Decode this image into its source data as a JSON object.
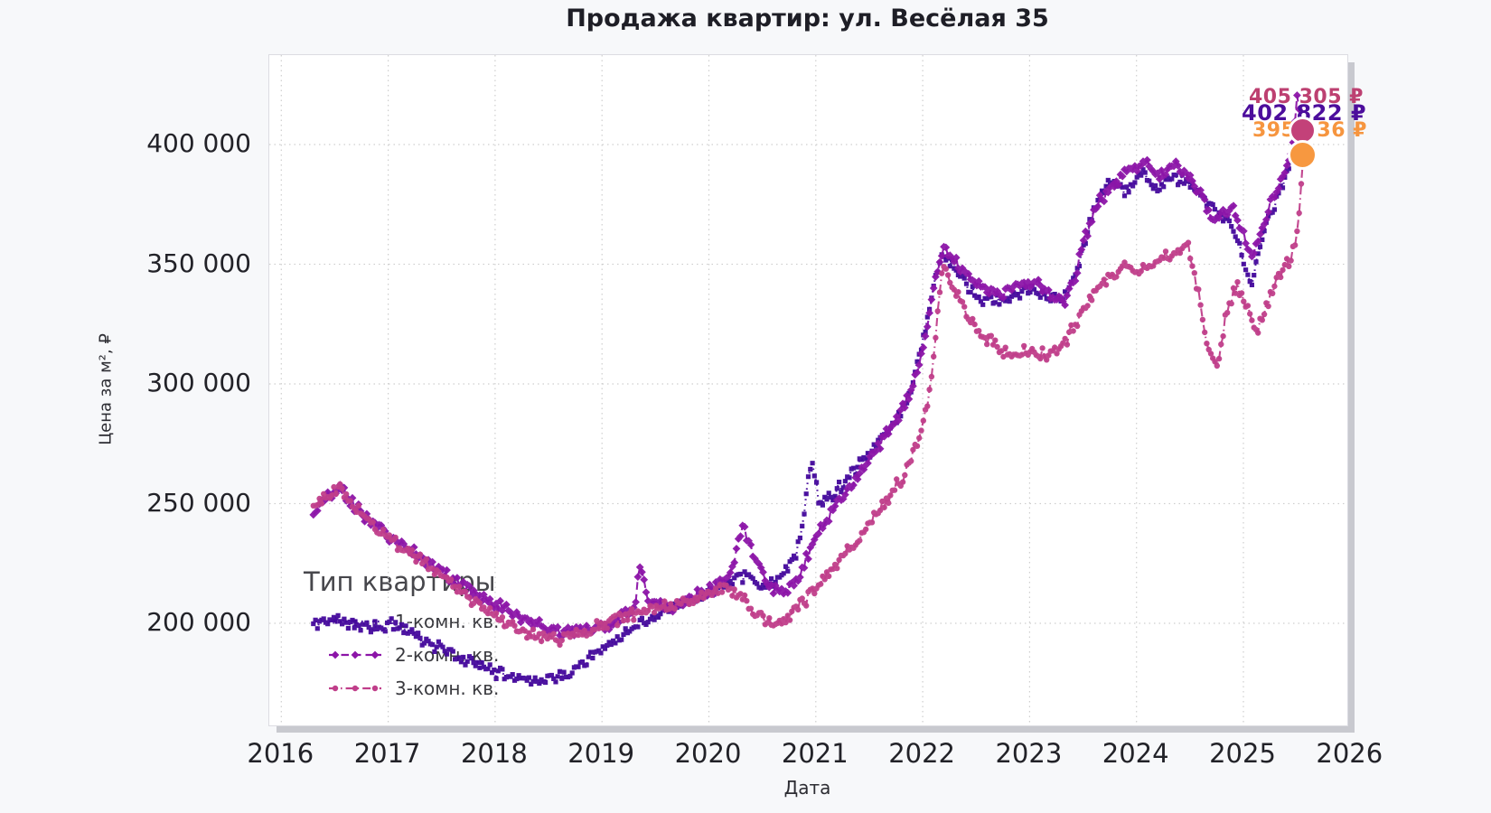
{
  "title": "Продажа квартир: ул. Весёлая 35",
  "x_axis": {
    "label": "Дата"
  },
  "y_axis": {
    "label": "Цена за м², ₽"
  },
  "legend": {
    "title": "Тип квартиры"
  },
  "colors": {
    "background": "#f7f8fa",
    "plot_background": "#ffffff",
    "grid": "#c9c9c9",
    "text": "#222228",
    "series_1room": "#45089c",
    "series_2room": "#8c15a8",
    "series_3room": "#c03e8a",
    "annotation_1room": "#4c0d9c",
    "annotation_2room": "#bd4071",
    "annotation_3room": "#f6953f"
  },
  "chart_data": {
    "type": "line",
    "title": "Продажа квартир: ул. Весёлая 35",
    "xlabel": "Дата",
    "ylabel": "Цена за м², ₽",
    "legend_title": "Тип квартиры",
    "grid": "dotted",
    "x_tick_labels": [
      "2016",
      "2017",
      "2018",
      "2019",
      "2020",
      "2021",
      "2022",
      "2023",
      "2024",
      "2025",
      "2026"
    ],
    "x_tick_years": [
      2016,
      2017,
      2018,
      2019,
      2020,
      2021,
      2022,
      2023,
      2024,
      2025,
      2026
    ],
    "y_ticks": [
      {
        "value": 200000,
        "label": "200 000"
      },
      {
        "value": 250000,
        "label": "250 000"
      },
      {
        "value": 300000,
        "label": "300 000"
      },
      {
        "value": 350000,
        "label": "350 000"
      },
      {
        "value": 400000,
        "label": "400 000"
      }
    ],
    "x_range_years": [
      2015.89,
      2025.97
    ],
    "y_range": [
      157400,
      437400
    ],
    "series": [
      {
        "name": "1-комн. кв.",
        "color": "#45089c",
        "linestyle": "dotted",
        "marker": "square",
        "final_value": 402822,
        "final_label": "402 822 ₽",
        "final_label_color": "#4c0d9c",
        "end_dot_color": null,
        "points_year_price": [
          [
            2016.3,
            199500
          ],
          [
            2016.5,
            202000
          ],
          [
            2016.7,
            199000
          ],
          [
            2016.9,
            196500
          ],
          [
            2017.05,
            199500
          ],
          [
            2017.25,
            194000
          ],
          [
            2017.45,
            190000
          ],
          [
            2017.65,
            186500
          ],
          [
            2017.85,
            182500
          ],
          [
            2018.05,
            179000
          ],
          [
            2018.25,
            176500
          ],
          [
            2018.45,
            175500
          ],
          [
            2018.65,
            178000
          ],
          [
            2018.85,
            184000
          ],
          [
            2019.05,
            191000
          ],
          [
            2019.25,
            197000
          ],
          [
            2019.45,
            202000
          ],
          [
            2019.6,
            206000
          ],
          [
            2019.75,
            209000
          ],
          [
            2019.9,
            211000
          ],
          [
            2020.05,
            213500
          ],
          [
            2020.2,
            217000
          ],
          [
            2020.35,
            221000
          ],
          [
            2020.5,
            215500
          ],
          [
            2020.65,
            219000
          ],
          [
            2020.8,
            227000
          ],
          [
            2020.88,
            242000
          ],
          [
            2020.96,
            270000
          ],
          [
            2021.04,
            249000
          ],
          [
            2021.25,
            258000
          ],
          [
            2021.45,
            268000
          ],
          [
            2021.65,
            279000
          ],
          [
            2021.85,
            292000
          ],
          [
            2022.0,
            318000
          ],
          [
            2022.1,
            340000
          ],
          [
            2022.18,
            356000
          ],
          [
            2022.3,
            349000
          ],
          [
            2022.45,
            339000
          ],
          [
            2022.6,
            334500
          ],
          [
            2022.8,
            335500
          ],
          [
            2023.0,
            340000
          ],
          [
            2023.15,
            337000
          ],
          [
            2023.3,
            334500
          ],
          [
            2023.45,
            349000
          ],
          [
            2023.6,
            373000
          ],
          [
            2023.75,
            385000
          ],
          [
            2023.9,
            380000
          ],
          [
            2024.05,
            388000
          ],
          [
            2024.2,
            382000
          ],
          [
            2024.35,
            387000
          ],
          [
            2024.5,
            383000
          ],
          [
            2024.62,
            377000
          ],
          [
            2024.75,
            372000
          ],
          [
            2024.88,
            369000
          ],
          [
            2025.0,
            352000
          ],
          [
            2025.07,
            341000
          ],
          [
            2025.17,
            362000
          ],
          [
            2025.28,
            373000
          ],
          [
            2025.38,
            386000
          ],
          [
            2025.48,
            395000
          ],
          [
            2025.53,
            399000
          ],
          [
            2025.56,
            402822
          ]
        ]
      },
      {
        "name": "2-комн. кв.",
        "color": "#8c15a8",
        "linestyle": "dashed",
        "marker": "diamond",
        "final_value": 405305,
        "final_label": "405 305 ₽",
        "final_label_color": "#bd4071",
        "end_dot_color": "#c34179",
        "end_dot_radius": 12.5,
        "points_year_price": [
          [
            2016.3,
            246000
          ],
          [
            2016.42,
            251000
          ],
          [
            2016.55,
            257500
          ],
          [
            2016.65,
            251000
          ],
          [
            2016.8,
            244000
          ],
          [
            2016.95,
            238500
          ],
          [
            2017.1,
            233500
          ],
          [
            2017.3,
            227500
          ],
          [
            2017.5,
            221500
          ],
          [
            2017.7,
            216000
          ],
          [
            2017.9,
            210500
          ],
          [
            2018.1,
            205500
          ],
          [
            2018.3,
            200500
          ],
          [
            2018.5,
            197500
          ],
          [
            2018.7,
            196000
          ],
          [
            2018.9,
            197500
          ],
          [
            2019.1,
            200500
          ],
          [
            2019.3,
            206000
          ],
          [
            2019.36,
            226000
          ],
          [
            2019.44,
            208000
          ],
          [
            2019.6,
            207000
          ],
          [
            2019.75,
            208000
          ],
          [
            2019.9,
            212000
          ],
          [
            2020.05,
            214000
          ],
          [
            2020.2,
            220000
          ],
          [
            2020.32,
            241000
          ],
          [
            2020.42,
            228000
          ],
          [
            2020.55,
            216000
          ],
          [
            2020.7,
            212000
          ],
          [
            2020.85,
            220000
          ],
          [
            2021.0,
            236000
          ],
          [
            2021.15,
            247000
          ],
          [
            2021.3,
            256000
          ],
          [
            2021.45,
            265500
          ],
          [
            2021.6,
            275000
          ],
          [
            2021.75,
            285000
          ],
          [
            2021.9,
            297000
          ],
          [
            2022.02,
            318000
          ],
          [
            2022.12,
            345000
          ],
          [
            2022.2,
            358500
          ],
          [
            2022.32,
            350000
          ],
          [
            2022.45,
            344000
          ],
          [
            2022.6,
            339000
          ],
          [
            2022.75,
            338000
          ],
          [
            2022.9,
            341000
          ],
          [
            2023.05,
            342000
          ],
          [
            2023.2,
            337000
          ],
          [
            2023.32,
            334000
          ],
          [
            2023.42,
            343000
          ],
          [
            2023.52,
            362000
          ],
          [
            2023.65,
            376000
          ],
          [
            2023.8,
            383000
          ],
          [
            2023.95,
            390000
          ],
          [
            2024.08,
            393500
          ],
          [
            2024.22,
            387000
          ],
          [
            2024.35,
            391500
          ],
          [
            2024.48,
            387000
          ],
          [
            2024.6,
            379000
          ],
          [
            2024.7,
            368000
          ],
          [
            2024.8,
            370000
          ],
          [
            2024.9,
            373000
          ],
          [
            2025.0,
            364000
          ],
          [
            2025.07,
            352000
          ],
          [
            2025.17,
            366000
          ],
          [
            2025.27,
            377000
          ],
          [
            2025.37,
            388000
          ],
          [
            2025.46,
            397000
          ],
          [
            2025.5,
            422000
          ],
          [
            2025.54,
            406000
          ],
          [
            2025.56,
            405305
          ]
        ]
      },
      {
        "name": "3-комн. кв.",
        "color": "#c03e8a",
        "linestyle": "dashdot",
        "marker": "circle",
        "final_value": 395236,
        "final_label": "395 236 ₽",
        "final_label_color": "#f6953f",
        "end_dot_color": "#f79840",
        "end_dot_radius": 13.5,
        "points_year_price": [
          [
            2016.3,
            248000
          ],
          [
            2016.42,
            253000
          ],
          [
            2016.55,
            257000
          ],
          [
            2016.7,
            248500
          ],
          [
            2016.85,
            241000
          ],
          [
            2017.0,
            235500
          ],
          [
            2017.2,
            229500
          ],
          [
            2017.4,
            223000
          ],
          [
            2017.6,
            216000
          ],
          [
            2017.8,
            209000
          ],
          [
            2018.0,
            203500
          ],
          [
            2018.2,
            198000
          ],
          [
            2018.4,
            194500
          ],
          [
            2018.6,
            194000
          ],
          [
            2018.8,
            196000
          ],
          [
            2019.0,
            199000
          ],
          [
            2019.2,
            202500
          ],
          [
            2019.4,
            205500
          ],
          [
            2019.6,
            207500
          ],
          [
            2019.8,
            209500
          ],
          [
            2020.0,
            212000
          ],
          [
            2020.15,
            215000
          ],
          [
            2020.3,
            211000
          ],
          [
            2020.45,
            204500
          ],
          [
            2020.6,
            200000
          ],
          [
            2020.75,
            203000
          ],
          [
            2020.9,
            209500
          ],
          [
            2021.05,
            217500
          ],
          [
            2021.2,
            226000
          ],
          [
            2021.35,
            233500
          ],
          [
            2021.5,
            241500
          ],
          [
            2021.65,
            250500
          ],
          [
            2021.8,
            260500
          ],
          [
            2021.95,
            274000
          ],
          [
            2022.08,
            300000
          ],
          [
            2022.18,
            349000
          ],
          [
            2022.28,
            341000
          ],
          [
            2022.4,
            330000
          ],
          [
            2022.55,
            321000
          ],
          [
            2022.7,
            315500
          ],
          [
            2022.85,
            312000
          ],
          [
            2023.0,
            314000
          ],
          [
            2023.15,
            311500
          ],
          [
            2023.3,
            315000
          ],
          [
            2023.45,
            327000
          ],
          [
            2023.6,
            338000
          ],
          [
            2023.75,
            345000
          ],
          [
            2023.9,
            349500
          ],
          [
            2024.05,
            347500
          ],
          [
            2024.2,
            351500
          ],
          [
            2024.35,
            355000
          ],
          [
            2024.48,
            359500
          ],
          [
            2024.58,
            337000
          ],
          [
            2024.68,
            312000
          ],
          [
            2024.76,
            308000
          ],
          [
            2024.84,
            329000
          ],
          [
            2024.93,
            341000
          ],
          [
            2025.02,
            334000
          ],
          [
            2025.12,
            321000
          ],
          [
            2025.22,
            333000
          ],
          [
            2025.32,
            344000
          ],
          [
            2025.42,
            351000
          ],
          [
            2025.48,
            357000
          ],
          [
            2025.52,
            371000
          ],
          [
            2025.56,
            395236
          ]
        ]
      }
    ]
  }
}
